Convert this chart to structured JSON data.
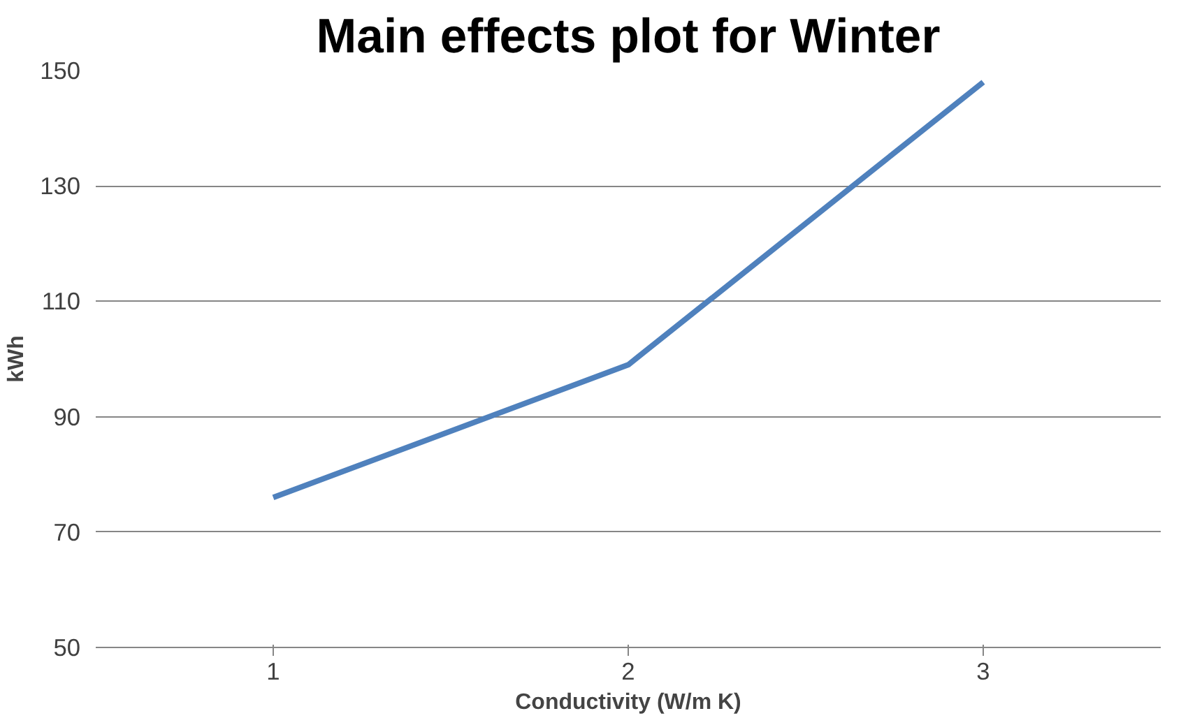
{
  "chart_data": {
    "type": "line",
    "title": "Main effects plot for Winter",
    "xlabel": "Conductivity (W/m K)",
    "ylabel": "kWh",
    "categories": [
      "1",
      "2",
      "3"
    ],
    "series": [
      {
        "color": "#4f81bd",
        "values": [
          76,
          99,
          148
        ]
      }
    ],
    "ylim": [
      50,
      150
    ],
    "yticks": [
      50,
      70,
      90,
      110,
      130,
      150
    ],
    "grid": "y",
    "marker": "none",
    "line_style": "solid"
  }
}
